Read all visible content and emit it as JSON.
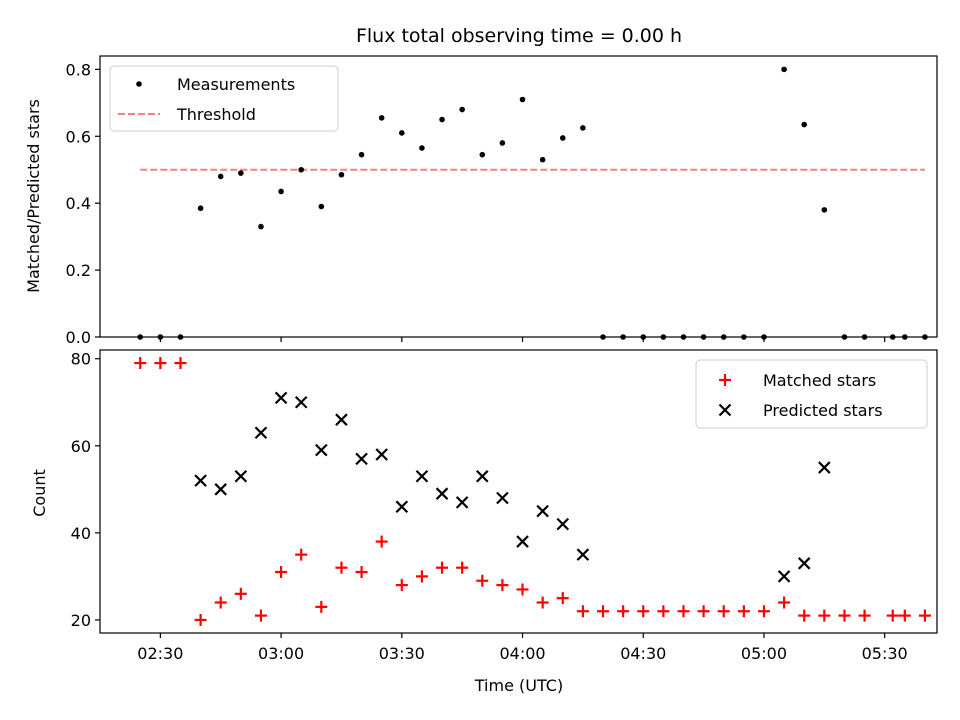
{
  "chart_data": [
    {
      "type": "scatter",
      "title": "Flux total observing time = 0.00 h",
      "xlabel": "",
      "ylabel": "Matched/Predicted stars",
      "xlim": [
        "02:15",
        "05:43"
      ],
      "ylim": [
        0,
        0.84
      ],
      "yticks": [
        "0.0",
        "0.2",
        "0.4",
        "0.6",
        "0.8"
      ],
      "grid": false,
      "legend": {
        "placement": "top-left",
        "entries": [
          "Measurements",
          "Threshold"
        ]
      },
      "colors": {
        "measurements": "#000000",
        "threshold": "#ff7f7f"
      },
      "threshold": {
        "name": "Threshold",
        "y": 0.5,
        "x_range": [
          "02:25",
          "05:40"
        ]
      },
      "series": [
        {
          "name": "Measurements",
          "x": [
            "02:25",
            "02:30",
            "02:35",
            "02:40",
            "02:45",
            "02:50",
            "02:55",
            "03:00",
            "03:05",
            "03:10",
            "03:15",
            "03:20",
            "03:25",
            "03:30",
            "03:35",
            "03:40",
            "03:45",
            "03:50",
            "03:55",
            "04:00",
            "04:05",
            "04:10",
            "04:15",
            "04:20",
            "04:25",
            "04:30",
            "04:35",
            "04:40",
            "04:45",
            "04:50",
            "04:55",
            "05:00",
            "05:05",
            "05:10",
            "05:15",
            "05:20",
            "05:25",
            "05:32",
            "05:35",
            "05:40"
          ],
          "y": [
            0.0,
            0.0,
            0.0,
            0.385,
            0.48,
            0.49,
            0.33,
            0.435,
            0.5,
            0.39,
            0.485,
            0.545,
            0.655,
            0.61,
            0.565,
            0.65,
            0.68,
            0.545,
            0.58,
            0.71,
            0.53,
            0.595,
            0.625,
            0.0,
            0.0,
            0.0,
            0.0,
            0.0,
            0.0,
            0.0,
            0.0,
            0.0,
            0.8,
            0.635,
            0.38,
            0.0,
            0.0,
            0.0,
            0.0,
            0.0
          ]
        }
      ]
    },
    {
      "type": "scatter",
      "title": "",
      "xlabel": "Time (UTC)",
      "ylabel": "Count",
      "xlim": [
        "02:15",
        "05:43"
      ],
      "ylim": [
        17,
        82
      ],
      "xticks": [
        "02:30",
        "03:00",
        "03:30",
        "04:00",
        "04:30",
        "05:00",
        "05:30"
      ],
      "yticks": [
        "20",
        "40",
        "60",
        "80"
      ],
      "grid": false,
      "legend": {
        "placement": "top-right",
        "entries": [
          "Matched stars",
          "Predicted stars"
        ]
      },
      "colors": {
        "matched": "#ff0000",
        "predicted": "#000000"
      },
      "series": [
        {
          "name": "Matched stars",
          "x": [
            "02:25",
            "02:30",
            "02:35",
            "02:40",
            "02:45",
            "02:50",
            "02:55",
            "03:00",
            "03:05",
            "03:10",
            "03:15",
            "03:20",
            "03:25",
            "03:30",
            "03:35",
            "03:40",
            "03:45",
            "03:50",
            "03:55",
            "04:00",
            "04:05",
            "04:10",
            "04:15",
            "04:20",
            "04:25",
            "04:30",
            "04:35",
            "04:40",
            "04:45",
            "04:50",
            "04:55",
            "05:00",
            "05:05",
            "05:10",
            "05:15",
            "05:20",
            "05:25",
            "05:32",
            "05:35",
            "05:40"
          ],
          "y": [
            79,
            79,
            79,
            20,
            24,
            26,
            21,
            31,
            35,
            23,
            32,
            31,
            38,
            28,
            30,
            32,
            32,
            29,
            28,
            27,
            24,
            25,
            22,
            22,
            22,
            22,
            22,
            22,
            22,
            22,
            22,
            22,
            24,
            21,
            21,
            21,
            21,
            21,
            21,
            21
          ]
        },
        {
          "name": "Predicted stars",
          "x": [
            "02:40",
            "02:45",
            "02:50",
            "02:55",
            "03:00",
            "03:05",
            "03:10",
            "03:15",
            "03:20",
            "03:25",
            "03:30",
            "03:35",
            "03:40",
            "03:45",
            "03:50",
            "03:55",
            "04:00",
            "04:05",
            "04:10",
            "04:15",
            "05:05",
            "05:10",
            "05:15"
          ],
          "y": [
            52,
            50,
            53,
            63,
            71,
            70,
            59,
            66,
            57,
            58,
            46,
            53,
            49,
            47,
            53,
            48,
            38,
            45,
            42,
            35,
            30,
            33,
            55
          ]
        }
      ]
    }
  ]
}
